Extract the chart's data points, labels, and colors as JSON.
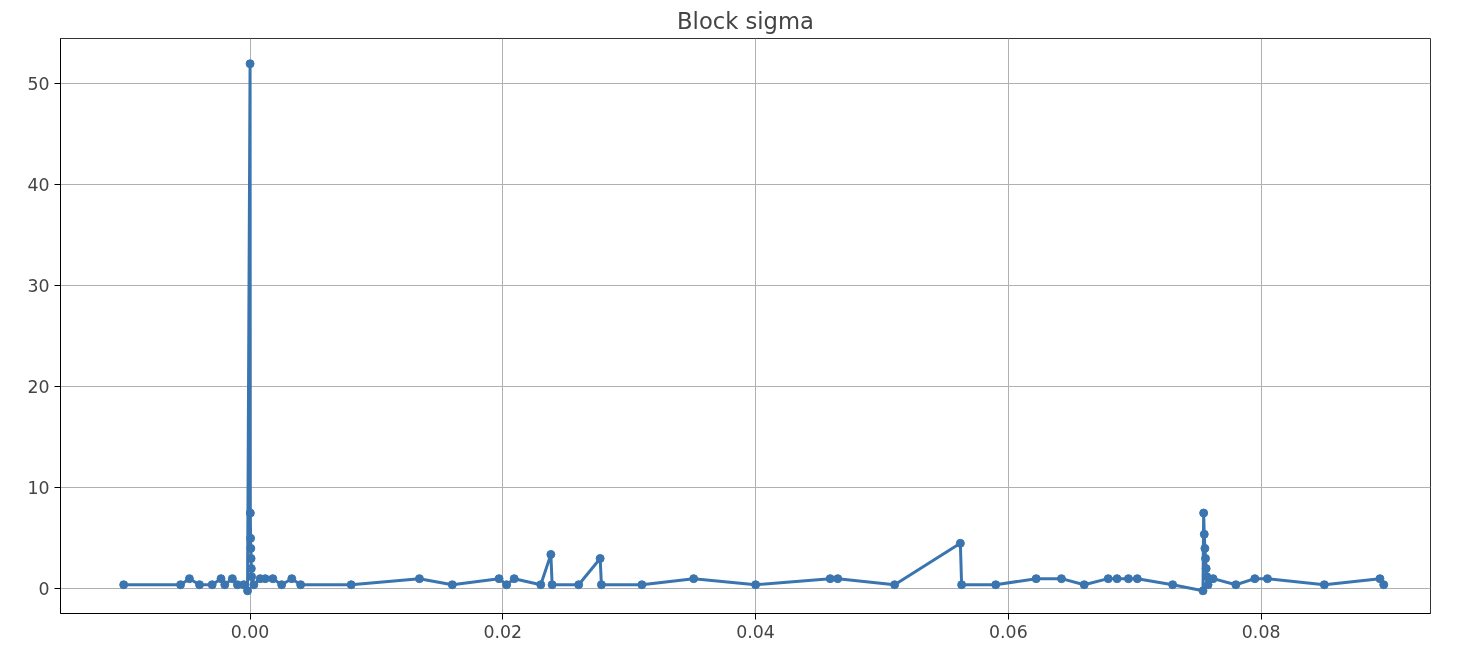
{
  "chart_data": {
    "type": "line",
    "title": "Block sigma",
    "xlim": [
      -0.015,
      0.0934
    ],
    "ylim": [
      -2.45,
      54.5
    ],
    "xticks": [
      {
        "value": 0,
        "label": "0.00"
      },
      {
        "value": 0.02,
        "label": "0.02"
      },
      {
        "value": 0.04,
        "label": "0.04"
      },
      {
        "value": 0.06,
        "label": "0.06"
      },
      {
        "value": 0.08,
        "label": "0.08"
      }
    ],
    "yticks": [
      0,
      10,
      20,
      30,
      40,
      50
    ],
    "grid": true,
    "marker": "circle",
    "line_style": "solid",
    "series": [
      {
        "color": "#3b75af",
        "x": [
          -0.01,
          -0.0055,
          -0.0048,
          -0.004,
          -0.003,
          -0.0023,
          -0.002,
          -0.0014,
          -0.001,
          -0.0005,
          -0.0002,
          0.0,
          2e-05,
          4e-05,
          6e-05,
          8e-05,
          0.0001,
          0.00012,
          0.0003,
          0.0008,
          0.0012,
          0.0018,
          0.0025,
          0.0033,
          0.004,
          0.008,
          0.0134,
          0.016,
          0.0197,
          0.0203,
          0.0209,
          0.023,
          0.0238,
          0.0239,
          0.026,
          0.0277,
          0.0278,
          0.031,
          0.0351,
          0.04,
          0.0459,
          0.0465,
          0.051,
          0.0562,
          0.0563,
          0.059,
          0.0622,
          0.0642,
          0.066,
          0.0679,
          0.0686,
          0.0695,
          0.0702,
          0.073,
          0.0754,
          0.07545,
          0.0755,
          0.07555,
          0.0756,
          0.07565,
          0.0757,
          0.0758,
          0.0762,
          0.078,
          0.0795,
          0.0805,
          0.085,
          0.0894,
          0.0897
        ],
        "values": [
          0.4,
          0.4,
          1.0,
          0.4,
          0.4,
          1.0,
          0.4,
          1.0,
          0.4,
          0.4,
          -0.2,
          52,
          7.5,
          5,
          4,
          3,
          2,
          1.2,
          0.4,
          1.0,
          1.0,
          1.0,
          0.4,
          1.0,
          0.4,
          0.4,
          1.0,
          0.4,
          1.0,
          0.4,
          1.0,
          0.4,
          3.4,
          0.4,
          0.4,
          3.0,
          0.4,
          0.4,
          1.0,
          0.4,
          1.0,
          1.0,
          0.4,
          4.5,
          0.4,
          0.4,
          1.0,
          1.0,
          0.4,
          1.0,
          1.0,
          1.0,
          1.0,
          0.4,
          -0.2,
          7.5,
          5.4,
          4,
          3,
          2,
          1.2,
          0.4,
          1.0,
          0.4,
          1.0,
          1.0,
          0.4,
          1.0,
          0.4
        ]
      }
    ]
  }
}
